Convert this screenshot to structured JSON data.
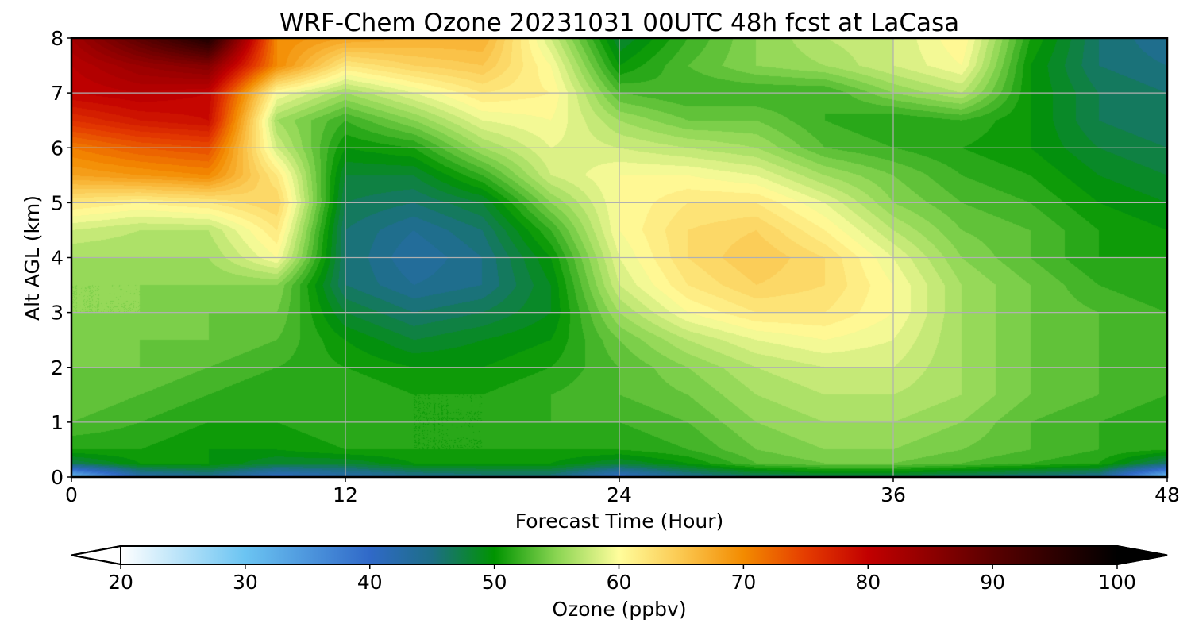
{
  "chart_data": {
    "type": "heatmap",
    "title": "WRF-Chem Ozone  20231031 00UTC 48h fcst at LaCasa",
    "xlabel": "Forecast Time (Hour)",
    "ylabel": "Alt AGL (km)",
    "xlim": [
      0,
      48
    ],
    "ylim": [
      0,
      8
    ],
    "xticks": [
      0,
      12,
      24,
      36,
      48
    ],
    "yticks": [
      0,
      1,
      2,
      3,
      4,
      5,
      6,
      7,
      8
    ],
    "grid": true,
    "x_hours": [
      0,
      3,
      6,
      9,
      12,
      15,
      18,
      21,
      24,
      27,
      30,
      33,
      36,
      39,
      42,
      45,
      48
    ],
    "y_km": [
      0,
      0.25,
      0.5,
      1,
      1.5,
      2,
      2.5,
      3,
      3.5,
      4,
      4.5,
      5,
      5.5,
      6,
      6.5,
      7,
      7.5,
      8
    ],
    "z_ppbv": [
      [
        30,
        42,
        44,
        40,
        42,
        44,
        45,
        45,
        40,
        44,
        46,
        47,
        47,
        46,
        45,
        44,
        30
      ],
      [
        47,
        50,
        50,
        48,
        48,
        50,
        50,
        50,
        48,
        50,
        53,
        54,
        54,
        53,
        52,
        51,
        46
      ],
      [
        51,
        51,
        50,
        50,
        51,
        51,
        51,
        51,
        51,
        52,
        54,
        55,
        55,
        54,
        53,
        52,
        51
      ],
      [
        53,
        52,
        51,
        51,
        52,
        51,
        51,
        52,
        52,
        53,
        55,
        56,
        56,
        55,
        53,
        52,
        51
      ],
      [
        54,
        53,
        52,
        51,
        52,
        51,
        51,
        52,
        53,
        54,
        56,
        57,
        57,
        56,
        54,
        53,
        52
      ],
      [
        54,
        54,
        53,
        52,
        51,
        50,
        50,
        51,
        53,
        55,
        57,
        58,
        58,
        56,
        54,
        53,
        52
      ],
      [
        55,
        54,
        54,
        53,
        50,
        48,
        49,
        50,
        54,
        57,
        59,
        60,
        59,
        56,
        54,
        53,
        52
      ],
      [
        55,
        55,
        54,
        54,
        48,
        46,
        47,
        49,
        56,
        60,
        62,
        62,
        60,
        56,
        54,
        53,
        52
      ],
      [
        55,
        55,
        55,
        55,
        46,
        44,
        45,
        49,
        58,
        62,
        64,
        63,
        60,
        56,
        54,
        52,
        51
      ],
      [
        56,
        56,
        56,
        60,
        46,
        43,
        45,
        50,
        59,
        63,
        65,
        63,
        59,
        55,
        53,
        51,
        51
      ],
      [
        58,
        57,
        57,
        62,
        46,
        44,
        46,
        52,
        60,
        63,
        64,
        61,
        57,
        54,
        53,
        51,
        50
      ],
      [
        62,
        61,
        62,
        64,
        47,
        46,
        48,
        55,
        60,
        62,
        62,
        59,
        55,
        53,
        52,
        50,
        49
      ],
      [
        68,
        69,
        70,
        62,
        48,
        48,
        52,
        58,
        60,
        60,
        59,
        56,
        54,
        52,
        51,
        49,
        48
      ],
      [
        71,
        73,
        74,
        58,
        50,
        51,
        56,
        59,
        58,
        57,
        56,
        53,
        52,
        51,
        50,
        48,
        47
      ],
      [
        76,
        78,
        79,
        56,
        52,
        55,
        59,
        60,
        56,
        54,
        54,
        52,
        51,
        52,
        50,
        47,
        46
      ],
      [
        80,
        81,
        80,
        60,
        56,
        59,
        62,
        61,
        53,
        52,
        52,
        52,
        55,
        57,
        50,
        47,
        46
      ],
      [
        81,
        84,
        86,
        70,
        62,
        64,
        65,
        60,
        50,
        53,
        55,
        56,
        58,
        60,
        50,
        46,
        45
      ],
      [
        83,
        90,
        97,
        70,
        68,
        67,
        67,
        58,
        48,
        52,
        55,
        57,
        58,
        61,
        51,
        46,
        44
      ]
    ],
    "colorbar": {
      "label": "Ozone  (ppbv)",
      "min": 20,
      "max": 100,
      "ticks": [
        20,
        30,
        40,
        50,
        60,
        70,
        80,
        90,
        100
      ],
      "extend": "both",
      "stops": [
        [
          20,
          "#ffffff"
        ],
        [
          30,
          "#6bc4f2"
        ],
        [
          40,
          "#3069c8"
        ],
        [
          45,
          "#1d6e86"
        ],
        [
          50,
          "#009400"
        ],
        [
          55,
          "#8ad552"
        ],
        [
          60,
          "#fffd9c"
        ],
        [
          65,
          "#fbc850"
        ],
        [
          70,
          "#f38b00"
        ],
        [
          75,
          "#e53c00"
        ],
        [
          80,
          "#c20000"
        ],
        [
          90,
          "#5a0000"
        ],
        [
          100,
          "#000000"
        ]
      ]
    }
  }
}
